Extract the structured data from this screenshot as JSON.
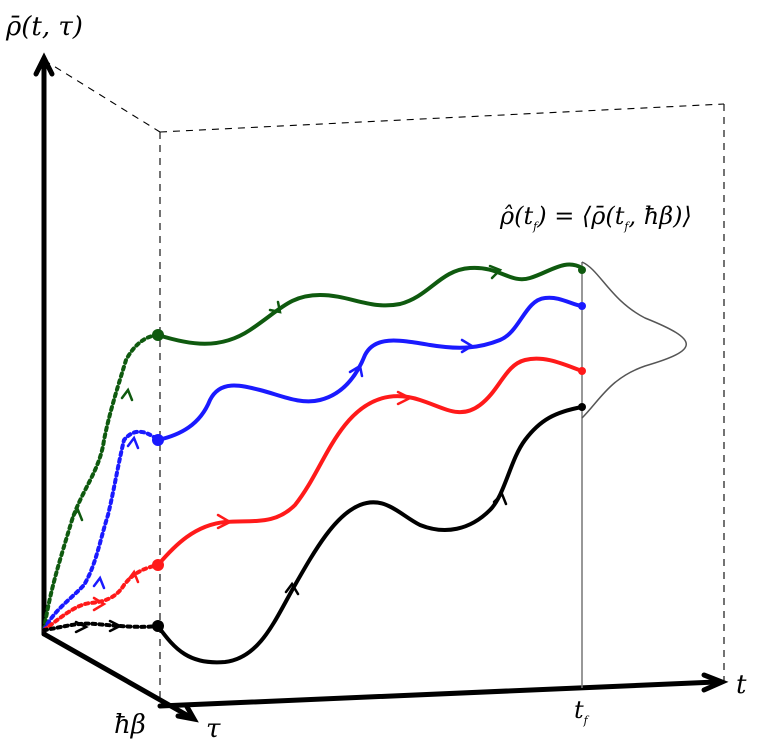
{
  "labels": {
    "y_axis": "ρ̄(t, τ)",
    "t_axis": "t",
    "tau_axis": "τ",
    "hbar_beta": "ħβ",
    "t_f": "t",
    "t_f_sub": "f",
    "formula": "ρ̂(t",
    "formula_sub": "f",
    "formula_rest": ") = ⟨ρ̄(t",
    "formula_sub2": "f",
    "formula_end": ", ħβ)⟩"
  },
  "colors": {
    "green": "#0f5a0f",
    "blue": "#1a1aff",
    "red": "#ff1a1a",
    "black": "#000000",
    "gaussian": "#555555"
  },
  "trajectories": [
    "green",
    "blue",
    "red",
    "black"
  ]
}
